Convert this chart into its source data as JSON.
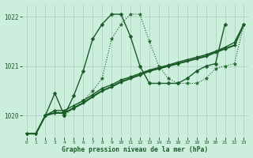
{
  "title": "Graphe pression niveau de la mer (hPa)",
  "background_color": "#cceedd",
  "grid_color": "#aaccbb",
  "line_color": "#1a5c28",
  "xlim": [
    -0.5,
    23.5
  ],
  "ylim": [
    1019.55,
    1022.25
  ],
  "yticks": [
    1020,
    1021,
    1022
  ],
  "ytick_labels": [
    "1020",
    "1021",
    "1022"
  ],
  "xtick_labels": [
    "0",
    "1",
    "2",
    "3",
    "4",
    "5",
    "6",
    "7",
    "8",
    "9",
    "10",
    "11",
    "12",
    "13",
    "14",
    "15",
    "16",
    "17",
    "18",
    "19",
    "20",
    "21",
    "22",
    "23"
  ],
  "series": [
    {
      "x": [
        0,
        1,
        2,
        3,
        4,
        5,
        6,
        7,
        8,
        9,
        10,
        11,
        12,
        13,
        14,
        15,
        16,
        17,
        18,
        19,
        20,
        21,
        22,
        23
      ],
      "y": [
        1019.63,
        1019.63,
        1020.0,
        1020.1,
        1020.0,
        1020.15,
        1020.3,
        1020.5,
        1020.75,
        1021.55,
        1021.85,
        1022.05,
        1022.05,
        1021.5,
        1021.0,
        1020.75,
        1020.65,
        1020.65,
        1020.65,
        1020.75,
        1020.95,
        1021.0,
        1021.05,
        1021.85
      ],
      "linestyle": ":",
      "marker": "*",
      "markersize": 3.5,
      "linewidth": 0.8
    },
    {
      "x": [
        2,
        3,
        4,
        5,
        6,
        7,
        8,
        9,
        10,
        11,
        12,
        13,
        14,
        15,
        16,
        17,
        18,
        19,
        20,
        21,
        22,
        23
      ],
      "y": [
        1020.0,
        1020.45,
        1020.0,
        1020.4,
        1020.9,
        1021.55,
        1021.85,
        1022.05,
        1022.05,
        1021.6,
        1021.0,
        1020.65,
        1020.65,
        1020.65,
        1020.65,
        1020.75,
        1020.9,
        1021.0,
        1021.05,
        1021.85,
        null,
        null
      ],
      "linestyle": "-",
      "marker": "D",
      "markersize": 2.5,
      "linewidth": 1.0
    },
    {
      "x": [
        0,
        1,
        2,
        3,
        4,
        5,
        6,
        7,
        8,
        9,
        10,
        11,
        12,
        13,
        14,
        15,
        16,
        17,
        18,
        19,
        20,
        21,
        22,
        23
      ],
      "y": [
        1019.63,
        1019.63,
        1020.0,
        1020.05,
        1020.05,
        1020.15,
        1020.25,
        1020.38,
        1020.5,
        1020.58,
        1020.68,
        1020.75,
        1020.82,
        1020.9,
        1020.95,
        1021.0,
        1021.05,
        1021.1,
        1021.15,
        1021.2,
        1021.28,
        1021.35,
        1021.42,
        1021.85
      ],
      "linestyle": "-",
      "marker": "D",
      "markersize": 2.0,
      "linewidth": 1.5
    },
    {
      "x": [
        0,
        1,
        2,
        3,
        4,
        5,
        6,
        7,
        8,
        9,
        10,
        11,
        12,
        13,
        14,
        15,
        16,
        17,
        18,
        19,
        20,
        21,
        22,
        23
      ],
      "y": [
        1019.63,
        1019.63,
        1020.0,
        1020.1,
        1020.1,
        1020.2,
        1020.3,
        1020.42,
        1020.55,
        1020.62,
        1020.72,
        1020.78,
        1020.85,
        1020.92,
        1020.97,
        1021.02,
        1021.08,
        1021.13,
        1021.18,
        1021.23,
        1021.3,
        1021.38,
        1021.48,
        1021.85
      ],
      "linestyle": "-",
      "marker": "D",
      "markersize": 2.0,
      "linewidth": 1.0
    }
  ]
}
